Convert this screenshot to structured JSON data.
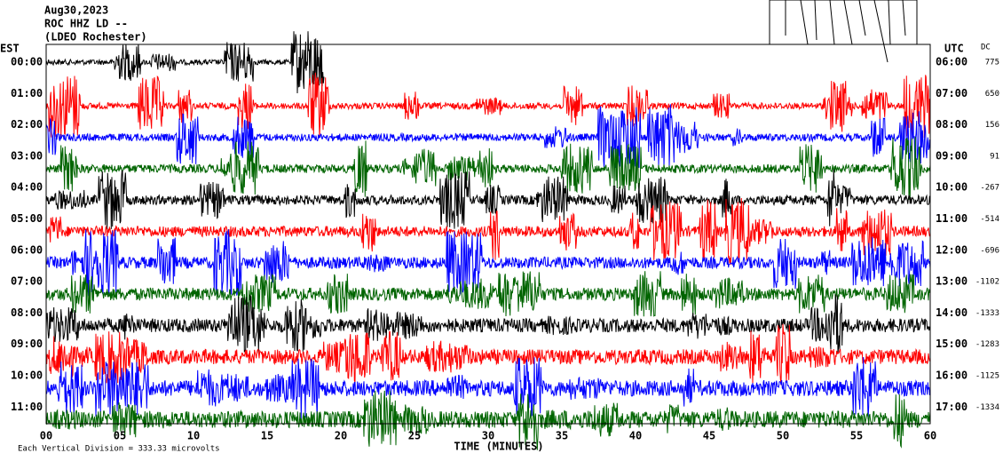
{
  "header": {
    "date": "Aug30,2023",
    "station": "ROC HHZ LD --",
    "network": "(LDEO Rochester)"
  },
  "left_label": "EST",
  "right_label": "UTC",
  "dc_label": "DC",
  "rows": [
    {
      "est": "00:00",
      "utc": "06:00",
      "dc": "775"
    },
    {
      "est": "01:00",
      "utc": "07:00",
      "dc": "650"
    },
    {
      "est": "02:00",
      "utc": "08:00",
      "dc": "156"
    },
    {
      "est": "03:00",
      "utc": "09:00",
      "dc": "91"
    },
    {
      "est": "04:00",
      "utc": "10:00",
      "dc": "-267"
    },
    {
      "est": "05:00",
      "utc": "11:00",
      "dc": "-514"
    },
    {
      "est": "06:00",
      "utc": "12:00",
      "dc": "-696"
    },
    {
      "est": "07:00",
      "utc": "13:00",
      "dc": "-1102"
    },
    {
      "est": "08:00",
      "utc": "14:00",
      "dc": "-1333"
    },
    {
      "est": "09:00",
      "utc": "15:00",
      "dc": "-1283"
    },
    {
      "est": "10:00",
      "utc": "16:00",
      "dc": "-1125"
    },
    {
      "est": "11:00",
      "utc": "17:00",
      "dc": "-1334"
    }
  ],
  "x_labels": [
    "00",
    "05",
    "10",
    "15",
    "20",
    "25",
    "30",
    "35",
    "40",
    "45",
    "50",
    "55",
    "60"
  ],
  "x_title": "TIME (MINUTES)",
  "footer": "Each Vertical Division =  333.33 microvolts"
}
